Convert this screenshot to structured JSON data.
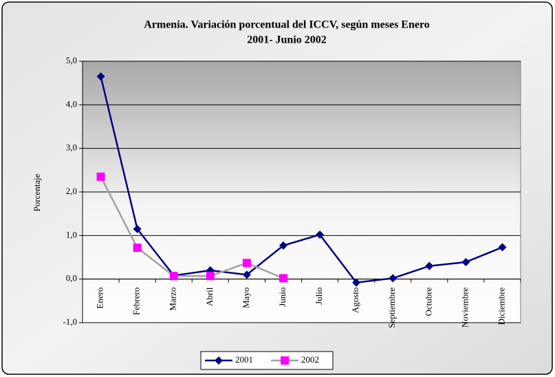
{
  "chart_data": {
    "type": "line",
    "title": [
      "Armenia. Variación porcentual del ICCV, según meses Enero",
      "2001- Junio 2002"
    ],
    "y_label": "Porcentaje",
    "categories": [
      "Enero",
      "Febrero",
      "Marzo",
      "Abril",
      "Mayo",
      "Junio",
      "Julio",
      "Agosto",
      "Septiembre",
      "Octubre",
      "Noviembre",
      "Diciembre"
    ],
    "series": [
      {
        "name": "2001",
        "color": "#000080",
        "marker": "diamond",
        "marker_color": "#000080",
        "values": [
          4.65,
          1.15,
          0.08,
          0.2,
          0.1,
          0.77,
          1.02,
          -0.08,
          0.02,
          0.3,
          0.39,
          0.73
        ]
      },
      {
        "name": "2002",
        "color": "#a0a0a0",
        "marker": "square",
        "marker_color": "#ff00ff",
        "values": [
          2.35,
          0.72,
          0.07,
          0.07,
          0.37,
          0.02,
          null,
          null,
          null,
          null,
          null,
          null
        ]
      }
    ],
    "ylim": [
      -1,
      5
    ],
    "yticks": [
      {
        "value": -1,
        "label": "-1,0"
      },
      {
        "value": 0,
        "label": "0,0"
      },
      {
        "value": 1,
        "label": "1,0"
      },
      {
        "value": 2,
        "label": "2,0"
      },
      {
        "value": 3,
        "label": "3,0"
      },
      {
        "value": 4,
        "label": "4,0"
      },
      {
        "value": 5,
        "label": "5,0"
      }
    ],
    "grid": true,
    "legend": "bottom"
  }
}
